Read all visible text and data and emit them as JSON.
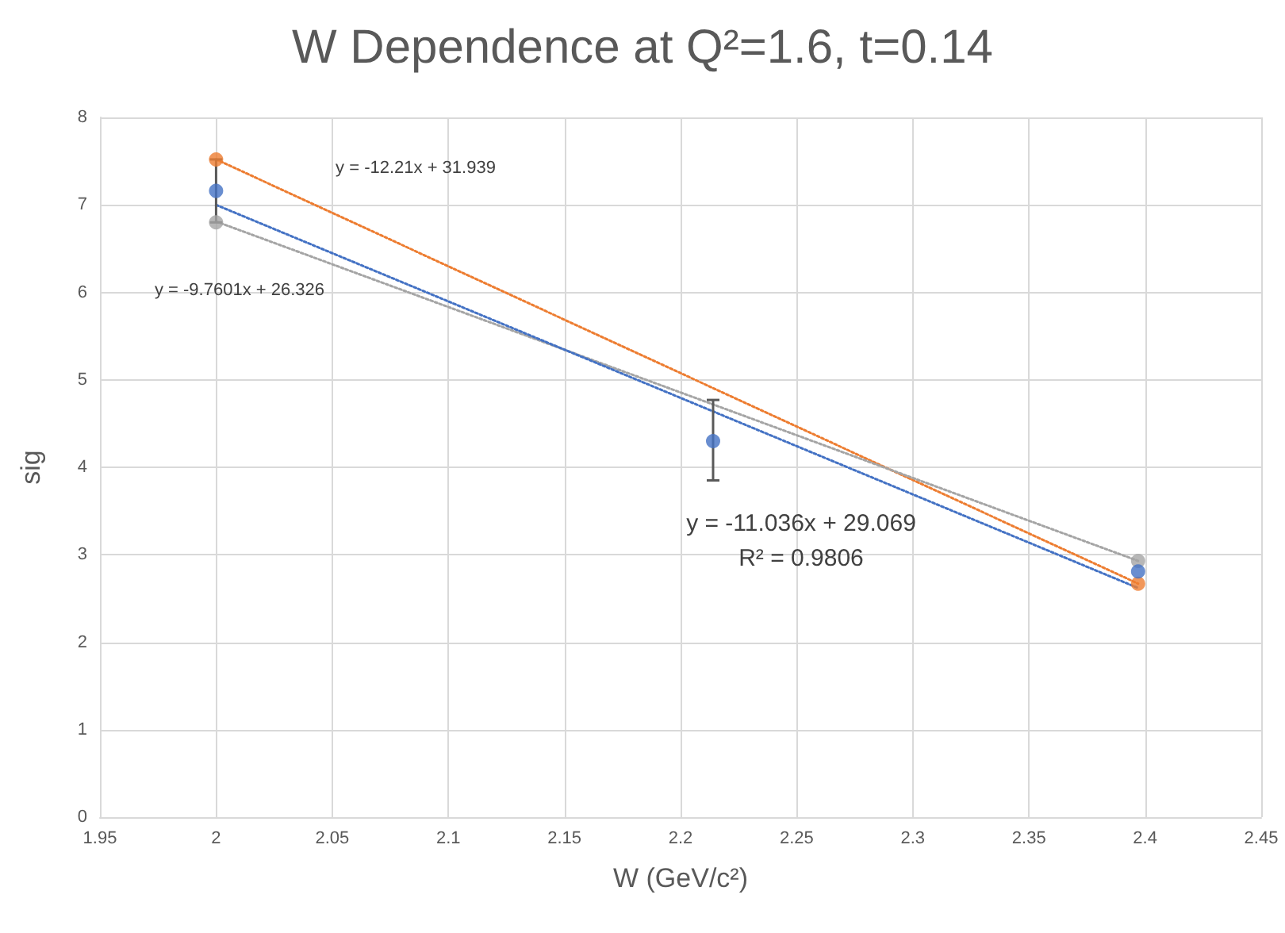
{
  "chart_data": {
    "type": "scatter",
    "title": "W Dependence at Q²=1.6, t=0.14",
    "xlabel": "W (GeV/c²)",
    "ylabel": "sig",
    "xlim": [
      1.95,
      2.45
    ],
    "xticks": [
      1.95,
      2,
      2.05,
      2.1,
      2.15,
      2.2,
      2.25,
      2.3,
      2.35,
      2.4,
      2.45
    ],
    "ylim": [
      0,
      8
    ],
    "yticks": [
      0,
      1,
      2,
      3,
      4,
      5,
      6,
      7,
      8
    ],
    "grid": true,
    "marker": "circle",
    "series": [
      {
        "type": "line",
        "color": "#ed7d31",
        "x": [
          2,
          2.397
        ],
        "values": [
          7.52,
          2.67
        ],
        "line_style": "dotted",
        "marker": "none"
      },
      {
        "type": "line",
        "color": "#a5a5a5",
        "x": [
          2,
          2.397
        ],
        "values": [
          6.81,
          2.93
        ],
        "line_style": "dotted",
        "marker": "none"
      },
      {
        "type": "line",
        "color": "#4472c4",
        "x": [
          2,
          2.397
        ],
        "values": [
          7.0,
          2.62
        ],
        "line_style": "dotted",
        "marker": "none"
      },
      {
        "color": "#ed7d31",
        "x": [
          2,
          2.397
        ],
        "values": [
          7.52,
          2.67
        ]
      },
      {
        "color": "#a5a5a5",
        "x": [
          2,
          2.397
        ],
        "values": [
          6.8,
          2.93
        ]
      },
      {
        "color": "#4472c4",
        "x": [
          2,
          2.214,
          2.397
        ],
        "values": [
          7.16,
          4.3,
          2.81
        ],
        "errors": [
          [
            6.8,
            7.52
          ],
          [
            3.85,
            4.77
          ],
          null
        ]
      }
    ],
    "annotations": [
      "y = -12.21x + 31.939",
      "y = -9.7601x + 26.326",
      "y = -11.036x + 29.069",
      "R² = 0.9806"
    ]
  }
}
